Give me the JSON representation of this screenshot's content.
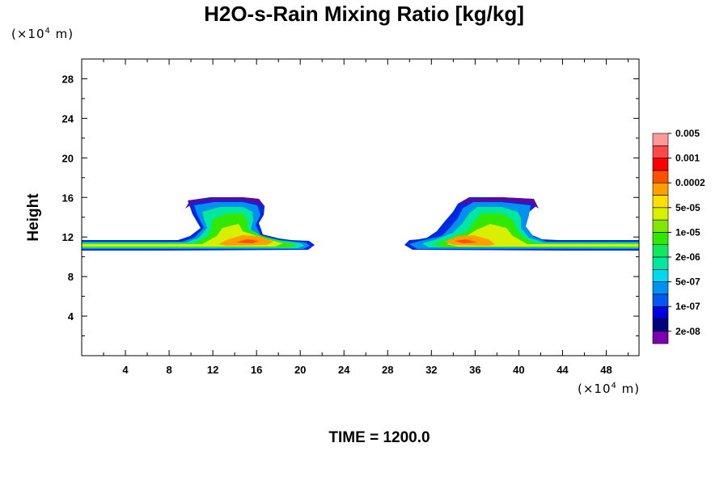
{
  "chart_data": {
    "type": "heatmap",
    "title": "H2O-s-Rain Mixing Ratio [kg/kg]",
    "ylabel": "Height",
    "xunit": {
      "prefix": "(×10",
      "exp": "4",
      "suffix": " m)"
    },
    "yunit": {
      "prefix": "(×10",
      "exp": "4",
      "suffix": " m)"
    },
    "x_ticks": [
      "4",
      "8",
      "12",
      "16",
      "20",
      "24",
      "28",
      "32",
      "36",
      "40",
      "44",
      "48"
    ],
    "y_ticks": [
      "4",
      "8",
      "12",
      "16",
      "20",
      "24",
      "28"
    ],
    "xlim": [
      0,
      51
    ],
    "ylim": [
      0,
      30
    ],
    "colorbar": {
      "colors": [
        "#7a00b0",
        "#00007a",
        "#0000dd",
        "#0058f0",
        "#0090f0",
        "#00d8f0",
        "#00e8a0",
        "#10e860",
        "#30e800",
        "#80e800",
        "#d8f000",
        "#ffe000",
        "#ffa000",
        "#ff5000",
        "#ff0000",
        "#ff4848",
        "#ff9898"
      ],
      "labels": [
        "2e-08",
        "1e-07",
        "5e-07",
        "2e-06",
        "1e-05",
        "5e-05",
        "0.0002",
        "0.001",
        "0.005"
      ]
    },
    "time_label": "TIME = 1200.0"
  }
}
